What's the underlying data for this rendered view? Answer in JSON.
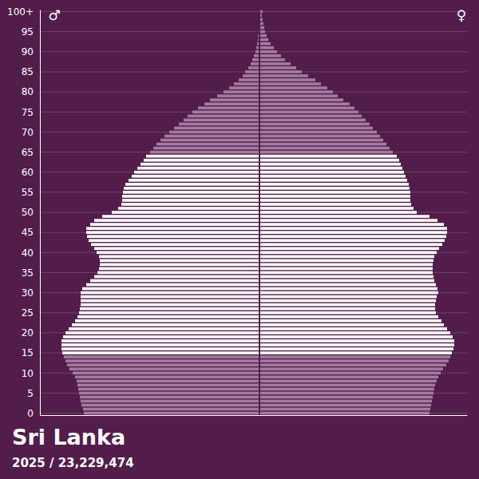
{
  "chart_data": {
    "type": "bar",
    "orientation": "horizontal",
    "title": "Sri Lanka",
    "subtitle": "2025 / 23,229,474",
    "grid": true,
    "tick_labels": "y",
    "xlim": [
      -192500,
      182000
    ],
    "ylim": [
      -0.5,
      100.5
    ],
    "yticks": [
      0,
      5,
      10,
      15,
      20,
      25,
      30,
      35,
      40,
      45,
      50,
      55,
      60,
      65,
      70,
      75,
      80,
      85,
      90,
      95,
      {
        "value": 100,
        "label": "100+"
      }
    ],
    "y": [
      0,
      1,
      2,
      3,
      4,
      5,
      6,
      7,
      8,
      9,
      10,
      11,
      12,
      13,
      14,
      15,
      16,
      17,
      18,
      19,
      20,
      21,
      22,
      23,
      24,
      25,
      26,
      27,
      28,
      29,
      30,
      31,
      32,
      33,
      34,
      35,
      36,
      37,
      38,
      39,
      40,
      41,
      42,
      43,
      44,
      45,
      46,
      47,
      48,
      49,
      50,
      51,
      52,
      53,
      54,
      55,
      56,
      57,
      58,
      59,
      60,
      61,
      62,
      63,
      64,
      65,
      66,
      67,
      68,
      69,
      70,
      71,
      72,
      73,
      74,
      75,
      76,
      77,
      78,
      79,
      80,
      81,
      82,
      83,
      84,
      85,
      86,
      87,
      88,
      89,
      90,
      91,
      92,
      93,
      94,
      95,
      96,
      97,
      98,
      99,
      100
    ],
    "series": [
      {
        "name": "♂",
        "colors": [
          "#a47ba0",
          "#a47ba0",
          "#a47ba0",
          "#a47ba0",
          "#a47ba0",
          "#a47ba0",
          "#a47ba0",
          "#a47ba0",
          "#a47ba0",
          "#a47ba0",
          "#a47ba0",
          "#a47ba0",
          "#a47ba0",
          "#a47ba0",
          "#a47ba0",
          "#ffffff",
          "#ffffff",
          "#ffffff",
          "#ffffff",
          "#ffffff",
          "#ffffff",
          "#ffffff",
          "#ffffff",
          "#ffffff",
          "#ffffff",
          "#ffffff",
          "#ffffff",
          "#ffffff",
          "#ffffff",
          "#ffffff",
          "#ffffff",
          "#ffffff",
          "#ffffff",
          "#ffffff",
          "#ffffff",
          "#ffffff",
          "#ffffff",
          "#ffffff",
          "#ffffff",
          "#ffffff",
          "#ffffff",
          "#ffffff",
          "#ffffff",
          "#ffffff",
          "#ffffff",
          "#ffffff",
          "#ffffff",
          "#ffffff",
          "#ffffff",
          "#ffffff",
          "#ffffff",
          "#ffffff",
          "#ffffff",
          "#ffffff",
          "#ffffff",
          "#ffffff",
          "#ffffff",
          "#ffffff",
          "#ffffff",
          "#ffffff",
          "#ffffff",
          "#ffffff",
          "#ffffff",
          "#ffffff",
          "#ffffff",
          "#a47ba0",
          "#a47ba0",
          "#a47ba0",
          "#a47ba0",
          "#a47ba0",
          "#a47ba0",
          "#a47ba0",
          "#a47ba0",
          "#a47ba0",
          "#a47ba0",
          "#a47ba0",
          "#a47ba0",
          "#a47ba0",
          "#a47ba0",
          "#a47ba0",
          "#a47ba0",
          "#a47ba0",
          "#a47ba0",
          "#a47ba0",
          "#a47ba0",
          "#a47ba0",
          "#a47ba0",
          "#a47ba0",
          "#a47ba0",
          "#a47ba0",
          "#a47ba0",
          "#a47ba0",
          "#a47ba0",
          "#a47ba0",
          "#a47ba0",
          "#a47ba0",
          "#a47ba0",
          "#a47ba0",
          "#a47ba0",
          "#a47ba0",
          "#a47ba0"
        ],
        "values": [
          154000,
          154700,
          156100,
          156800,
          157500,
          158200,
          158900,
          159600,
          160300,
          161700,
          163800,
          166600,
          168700,
          170100,
          171500,
          172900,
          173600,
          173600,
          173600,
          172200,
          170100,
          167300,
          164500,
          161700,
          159600,
          158200,
          157500,
          156800,
          156800,
          156800,
          156800,
          155400,
          151900,
          148400,
          144900,
          142100,
          140700,
          140000,
          140000,
          140700,
          142800,
          144900,
          147700,
          149800,
          151200,
          151900,
          151900,
          148400,
          144900,
          137900,
          129500,
          123900,
          121100,
          120400,
          120400,
          119700,
          119000,
          117600,
          114800,
          112000,
          109900,
          107100,
          104300,
          101500,
          99400,
          95900,
          93100,
          90300,
          86800,
          83300,
          79100,
          74900,
          70700,
          66500,
          63000,
          58800,
          53900,
          48300,
          43400,
          37100,
          31500,
          26600,
          22400,
          18200,
          14700,
          12600,
          9800,
          7700,
          6300,
          4900,
          3500,
          2800,
          2100,
          1400,
          1400,
          700,
          700,
          500,
          400,
          300,
          300
        ]
      },
      {
        "name": "♀",
        "colors": [
          "#a47ba0",
          "#a47ba0",
          "#a47ba0",
          "#a47ba0",
          "#a47ba0",
          "#a47ba0",
          "#a47ba0",
          "#a47ba0",
          "#a47ba0",
          "#a47ba0",
          "#a47ba0",
          "#a47ba0",
          "#a47ba0",
          "#a47ba0",
          "#a47ba0",
          "#ffffff",
          "#ffffff",
          "#ffffff",
          "#ffffff",
          "#ffffff",
          "#ffffff",
          "#ffffff",
          "#ffffff",
          "#ffffff",
          "#ffffff",
          "#ffffff",
          "#ffffff",
          "#ffffff",
          "#ffffff",
          "#ffffff",
          "#ffffff",
          "#ffffff",
          "#ffffff",
          "#ffffff",
          "#ffffff",
          "#ffffff",
          "#ffffff",
          "#ffffff",
          "#ffffff",
          "#ffffff",
          "#ffffff",
          "#ffffff",
          "#ffffff",
          "#ffffff",
          "#ffffff",
          "#ffffff",
          "#ffffff",
          "#ffffff",
          "#ffffff",
          "#ffffff",
          "#ffffff",
          "#ffffff",
          "#ffffff",
          "#ffffff",
          "#ffffff",
          "#ffffff",
          "#ffffff",
          "#ffffff",
          "#ffffff",
          "#ffffff",
          "#ffffff",
          "#ffffff",
          "#ffffff",
          "#ffffff",
          "#ffffff",
          "#a47ba0",
          "#a47ba0",
          "#a47ba0",
          "#a47ba0",
          "#a47ba0",
          "#a47ba0",
          "#a47ba0",
          "#a47ba0",
          "#a47ba0",
          "#a47ba0",
          "#a47ba0",
          "#a47ba0",
          "#a47ba0",
          "#a47ba0",
          "#a47ba0",
          "#a47ba0",
          "#a47ba0",
          "#a47ba0",
          "#a47ba0",
          "#a47ba0",
          "#a47ba0",
          "#a47ba0",
          "#a47ba0",
          "#a47ba0",
          "#a47ba0",
          "#a47ba0",
          "#a47ba0",
          "#a47ba0",
          "#a47ba0",
          "#a47ba0",
          "#a47ba0",
          "#a47ba0",
          "#a47ba0",
          "#a47ba0",
          "#a47ba0",
          "#a47ba0"
        ],
        "values": [
          148400,
          149100,
          149800,
          150500,
          151200,
          151900,
          152600,
          153300,
          154700,
          156100,
          158200,
          160300,
          163100,
          165200,
          166600,
          168000,
          169400,
          170100,
          170100,
          168700,
          166600,
          163800,
          161000,
          158900,
          156100,
          154000,
          153300,
          153300,
          154000,
          154700,
          156100,
          155400,
          154000,
          152600,
          151900,
          151200,
          151200,
          151200,
          151900,
          152600,
          154700,
          156800,
          159600,
          161700,
          163100,
          163800,
          163800,
          161000,
          155400,
          148400,
          137200,
          134400,
          132300,
          131600,
          131600,
          131600,
          130900,
          130200,
          128800,
          127400,
          126000,
          124600,
          123200,
          121800,
          119700,
          116200,
          113400,
          110600,
          107800,
          105000,
          102200,
          98700,
          95900,
          92400,
          88900,
          86100,
          82600,
          78400,
          72800,
          67900,
          63700,
          58800,
          53200,
          48300,
          42000,
          36400,
          31500,
          26600,
          21700,
          18200,
          14700,
          11900,
          9100,
          7000,
          5600,
          4200,
          3500,
          2800,
          2100,
          1400,
          2100
        ]
      }
    ]
  }
}
